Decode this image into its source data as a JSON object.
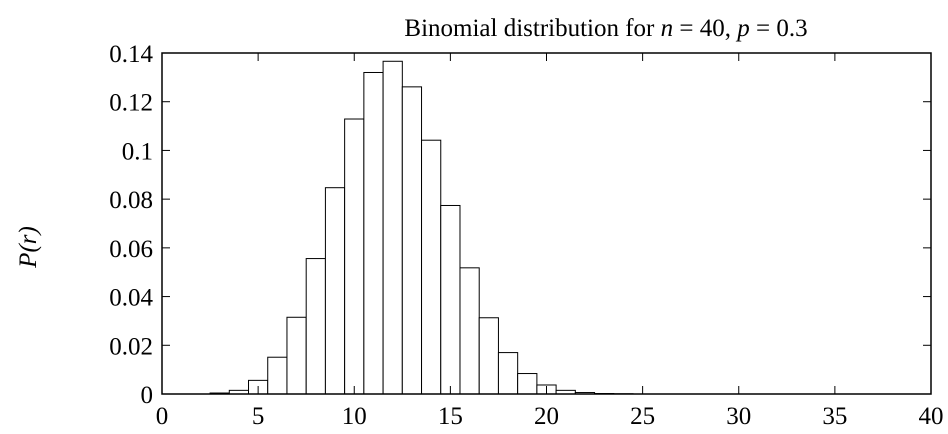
{
  "chart_data": {
    "type": "bar",
    "title": {
      "prefix": "Binomial distribution for ",
      "n_var": "n",
      "n_rel": " = 40, ",
      "p_var": "p",
      "p_rel": " = 0.3"
    },
    "xlabel": "",
    "ylabel": "P(r)",
    "xlim": [
      0,
      40
    ],
    "ylim": [
      0,
      0.14
    ],
    "xticks": [
      0,
      5,
      10,
      15,
      20,
      25,
      30,
      35,
      40
    ],
    "yticks": [
      0,
      0.02,
      0.04,
      0.06,
      0.08,
      0.1,
      0.12,
      0.14
    ],
    "ytick_labels": [
      "0",
      "0.02",
      "0.04",
      "0.06",
      "0.08",
      "0.1",
      "0.12",
      "0.14"
    ],
    "grid": false,
    "x": [
      0,
      1,
      2,
      3,
      4,
      5,
      6,
      7,
      8,
      9,
      10,
      11,
      12,
      13,
      14,
      15,
      16,
      17,
      18,
      19,
      20,
      21,
      22,
      23,
      24,
      25,
      26,
      27,
      28,
      29,
      30,
      31,
      32,
      33,
      34,
      35,
      36,
      37,
      38,
      39,
      40
    ],
    "values": [
      0.0,
      0.0,
      0.0,
      0.0004,
      0.0015,
      0.0056,
      0.0151,
      0.0315,
      0.0556,
      0.0847,
      0.1129,
      0.132,
      0.1366,
      0.1261,
      0.1042,
      0.0774,
      0.0518,
      0.0313,
      0.017,
      0.0084,
      0.0037,
      0.0015,
      0.0006,
      0.0002,
      0.0001,
      0.0,
      0.0,
      0.0,
      0.0,
      0.0,
      0.0,
      0.0,
      0.0,
      0.0,
      0.0,
      0.0,
      0.0,
      0.0,
      0.0,
      0.0,
      0.0
    ],
    "bar_fill": "#ffffff",
    "bar_stroke": "#000000"
  }
}
